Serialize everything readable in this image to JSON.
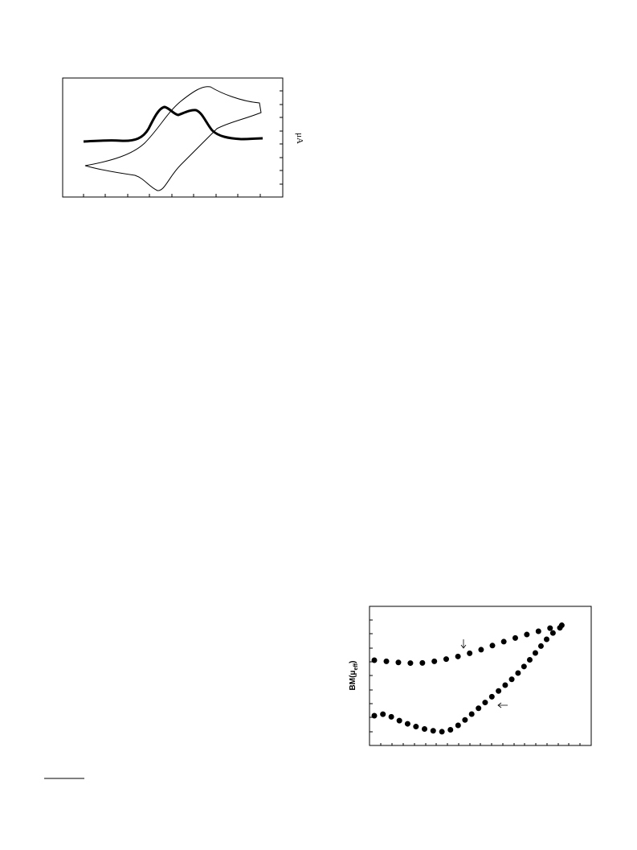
{
  "figure1": {
    "y_label": "μA"
  },
  "figure2": {
    "y_label": {
      "main": "BM(μ",
      "sub": "eff",
      "close": ")"
    }
  }
}
